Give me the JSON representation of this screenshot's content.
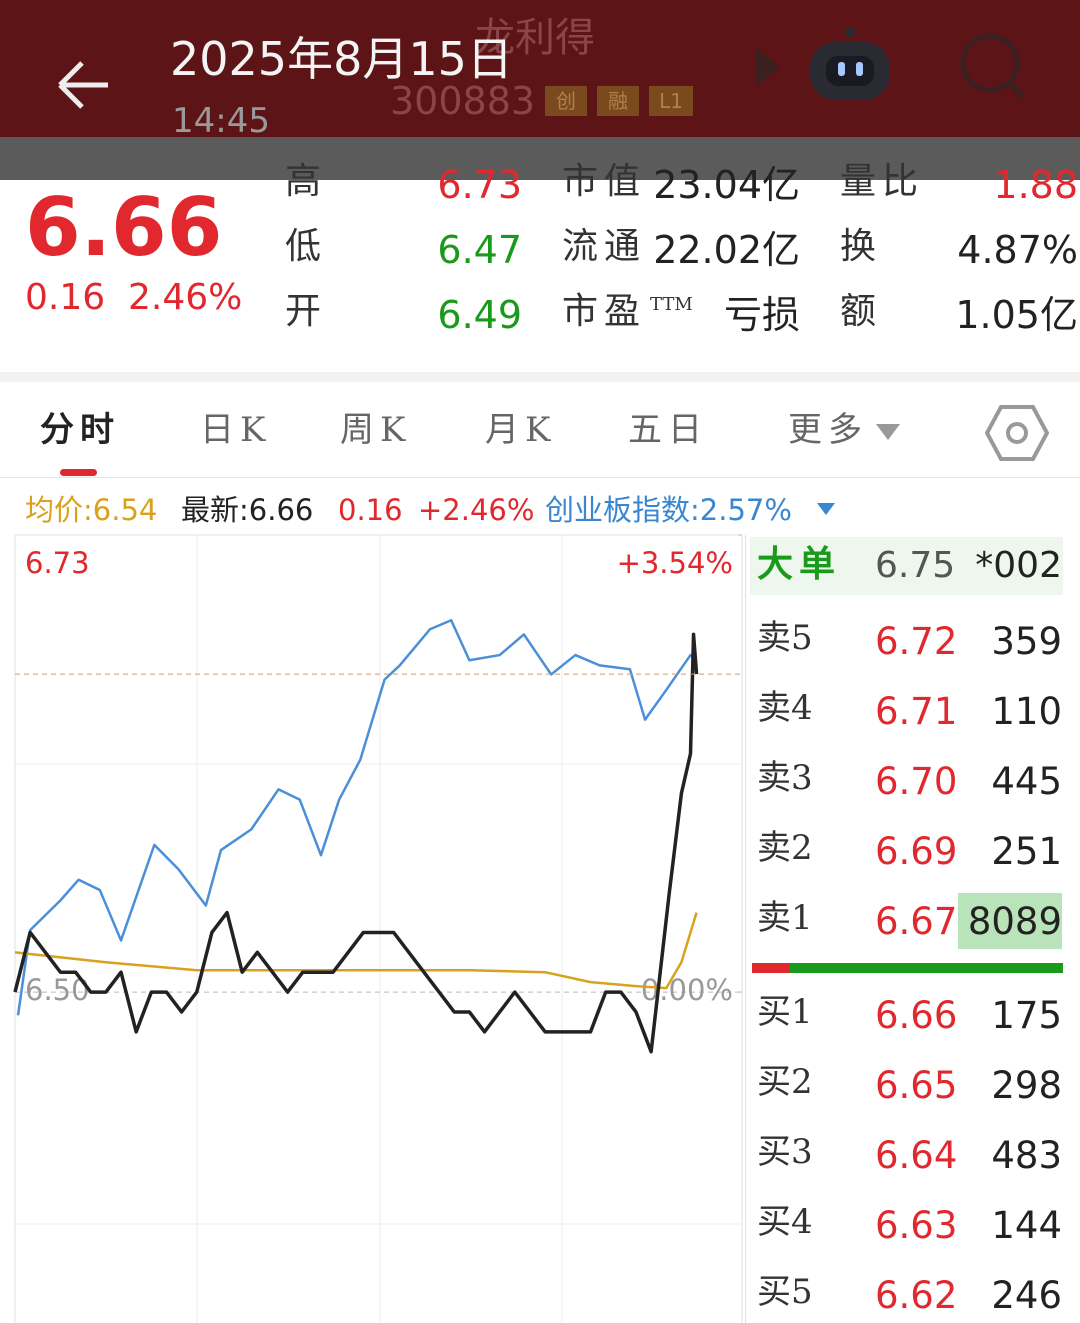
{
  "header": {
    "date": "2025年8月15日",
    "time": "14:45",
    "name": "龙利得",
    "code": "300883",
    "tags": [
      "创",
      "融",
      "L1"
    ]
  },
  "quote": {
    "price": "6.66",
    "change": "0.16",
    "change_pct": "2.46%",
    "stats": [
      {
        "label": "高",
        "value": "6.73"
      },
      {
        "label": "低",
        "value": "6.47"
      },
      {
        "label": "开",
        "value": "6.49"
      },
      {
        "label": "市值",
        "value": "23.04亿"
      },
      {
        "label": "流通",
        "value": "22.02亿"
      },
      {
        "label": "市盈",
        "sup": "TTM",
        "value": "亏损"
      },
      {
        "label": "量比",
        "value": "1.88"
      },
      {
        "label": "换",
        "value": "4.87%"
      },
      {
        "label": "额",
        "value": "1.05亿"
      }
    ]
  },
  "tabs": [
    "分时",
    "日K",
    "周K",
    "月K",
    "五日",
    "更多"
  ],
  "legend": {
    "avg": "均价:6.54",
    "latest": "最新:6.66",
    "change": "0.16",
    "pct": "+2.46%",
    "index": "创业板指数:2.57%"
  },
  "chart": {
    "type": "line",
    "xlim": [
      0,
      240
    ],
    "ylim": [
      6.335,
      6.73
    ],
    "y2lim": [
      -2.54,
      3.54
    ],
    "yticks": [
      6.73,
      {
        "value": 6.5,
        "label": "6.50"
      }
    ],
    "y2ticks": [
      {
        "value": 3.54,
        "label": "+3.54%"
      },
      {
        "value": 0,
        "label": "0.00%"
      }
    ],
    "series": [
      {
        "name": "创业板指数",
        "color": "#4a8fd8",
        "axis": "y2",
        "x": [
          1,
          5,
          15,
          21,
          28,
          35,
          46,
          54,
          63,
          68,
          78,
          87,
          94,
          101,
          107,
          114,
          122,
          127,
          137,
          144,
          150,
          160,
          168,
          177,
          185,
          193,
          203,
          208,
          215,
          223,
          225
        ],
        "values": [
          -0.18,
          0.48,
          0.71,
          0.87,
          0.79,
          0.4,
          1.14,
          0.95,
          0.67,
          1.1,
          1.26,
          1.57,
          1.49,
          1.06,
          1.49,
          1.8,
          2.42,
          2.53,
          2.81,
          2.88,
          2.57,
          2.61,
          2.77,
          2.46,
          2.61,
          2.53,
          2.5,
          2.11,
          2.34,
          2.61,
          2.57
        ]
      },
      {
        "name": "均价",
        "color": "#d9a21e",
        "x": [
          0,
          30,
          60,
          100,
          150,
          175,
          190,
          205,
          215,
          220,
          225
        ],
        "values": [
          6.52,
          6.515,
          6.511,
          6.511,
          6.511,
          6.51,
          6.505,
          6.503,
          6.502,
          6.515,
          6.54
        ]
      },
      {
        "name": "最新",
        "color": "#222222",
        "x": [
          0,
          5,
          10,
          15,
          20,
          25,
          30,
          35,
          40,
          45,
          50,
          55,
          60,
          65,
          70,
          75,
          80,
          85,
          90,
          95,
          100,
          105,
          110,
          115,
          120,
          125,
          130,
          135,
          140,
          145,
          150,
          155,
          160,
          165,
          170,
          175,
          180,
          185,
          190,
          195,
          200,
          205,
          210,
          216,
          220,
          223,
          224,
          225
        ],
        "values": [
          6.5,
          6.53,
          6.52,
          6.51,
          6.51,
          6.5,
          6.5,
          6.51,
          6.48,
          6.5,
          6.5,
          6.49,
          6.5,
          6.53,
          6.54,
          6.51,
          6.52,
          6.51,
          6.5,
          6.51,
          6.51,
          6.51,
          6.52,
          6.53,
          6.53,
          6.53,
          6.52,
          6.51,
          6.5,
          6.49,
          6.49,
          6.48,
          6.49,
          6.5,
          6.49,
          6.48,
          6.48,
          6.48,
          6.48,
          6.5,
          6.5,
          6.49,
          6.47,
          6.55,
          6.6,
          6.62,
          6.68,
          6.66
        ]
      }
    ]
  },
  "order_book": {
    "big": {
      "label": "大单",
      "price": "6.75",
      "volume": "*002"
    },
    "asks": [
      {
        "label": "卖5",
        "price": "6.72",
        "volume": "359"
      },
      {
        "label": "卖4",
        "price": "6.71",
        "volume": "110"
      },
      {
        "label": "卖3",
        "price": "6.70",
        "volume": "445"
      },
      {
        "label": "卖2",
        "price": "6.69",
        "volume": "251"
      },
      {
        "label": "卖1",
        "price": "6.67",
        "volume": "8089"
      }
    ],
    "bids": [
      {
        "label": "买1",
        "price": "6.66",
        "volume": "175"
      },
      {
        "label": "买2",
        "price": "6.65",
        "volume": "298"
      },
      {
        "label": "买3",
        "price": "6.64",
        "volume": "483"
      },
      {
        "label": "买4",
        "price": "6.63",
        "volume": "144"
      },
      {
        "label": "买5",
        "price": "6.62",
        "volume": "246"
      }
    ]
  }
}
